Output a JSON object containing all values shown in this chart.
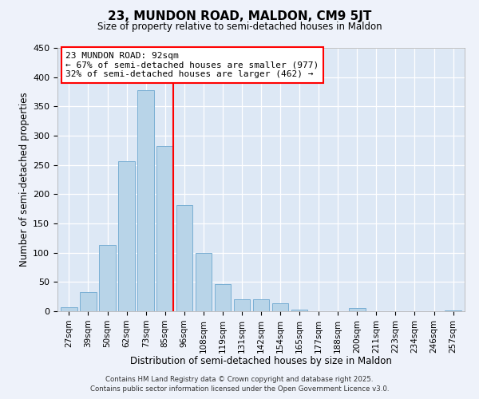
{
  "title": "23, MUNDON ROAD, MALDON, CM9 5JT",
  "subtitle": "Size of property relative to semi-detached houses in Maldon",
  "xlabel": "Distribution of semi-detached houses by size in Maldon",
  "ylabel": "Number of semi-detached properties",
  "bar_labels": [
    "27sqm",
    "39sqm",
    "50sqm",
    "62sqm",
    "73sqm",
    "85sqm",
    "96sqm",
    "108sqm",
    "119sqm",
    "131sqm",
    "142sqm",
    "154sqm",
    "165sqm",
    "177sqm",
    "188sqm",
    "200sqm",
    "211sqm",
    "223sqm",
    "234sqm",
    "246sqm",
    "257sqm"
  ],
  "bar_values": [
    7,
    33,
    113,
    257,
    378,
    282,
    181,
    100,
    46,
    21,
    20,
    14,
    3,
    0,
    0,
    6,
    0,
    0,
    0,
    0,
    1
  ],
  "bar_color": "#b8d4e8",
  "bar_edge_color": "#7aafd4",
  "vline_x_index": 5,
  "vline_color": "red",
  "annotation_title": "23 MUNDON ROAD: 92sqm",
  "annotation_line1": "← 67% of semi-detached houses are smaller (977)",
  "annotation_line2": "32% of semi-detached houses are larger (462) →",
  "annotation_box_edge": "red",
  "ylim": [
    0,
    450
  ],
  "yticks": [
    0,
    50,
    100,
    150,
    200,
    250,
    300,
    350,
    400,
    450
  ],
  "footer1": "Contains HM Land Registry data © Crown copyright and database right 2025.",
  "footer2": "Contains public sector information licensed under the Open Government Licence v3.0.",
  "bg_color": "#eef2fa",
  "plot_bg_color": "#dde8f5",
  "grid_color": "#ffffff"
}
